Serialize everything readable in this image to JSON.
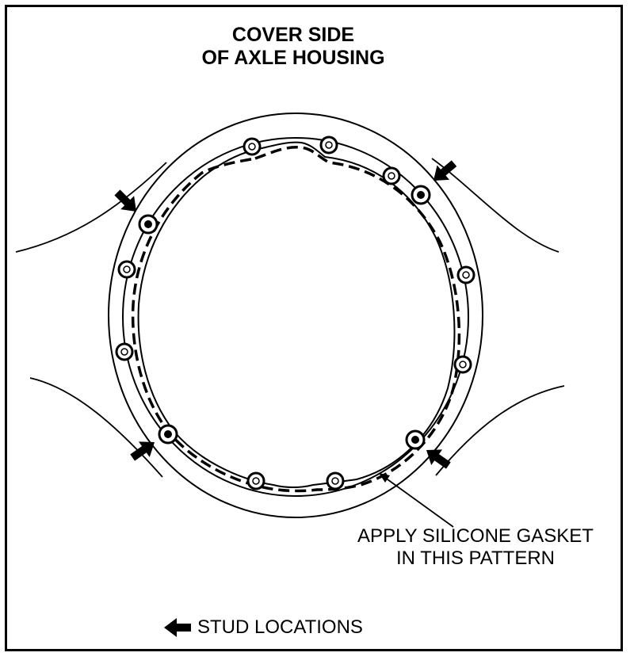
{
  "title": {
    "line1": "COVER SIDE",
    "line2": "OF AXLE HOUSING"
  },
  "callout": {
    "line1": "APPLY SILICONE GASKET",
    "line2": "IN THIS PATTERN"
  },
  "legend": {
    "label": "STUD LOCATIONS",
    "icon": "arrow-left-icon"
  }
}
